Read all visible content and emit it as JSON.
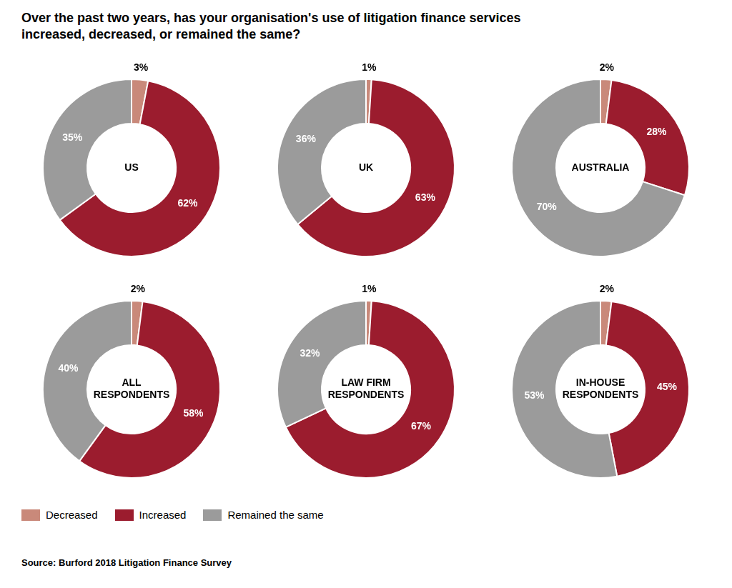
{
  "title": "Over the past two years, has your organisation's use of litigation finance services\nincreased, decreased, or remained the same?",
  "source": "Source: Burford 2018 Litigation Finance Survey",
  "legend": "lower left",
  "chart_data": [
    {
      "type": "doughnut",
      "title": "US",
      "categories": [
        "Decreased",
        "Increased",
        "Remained the same"
      ],
      "values": [
        3,
        62,
        35
      ],
      "value_labels": [
        "3%",
        "62%",
        "35%"
      ],
      "colors": [
        "#c9897a",
        "#9b1c2e",
        "#9b9b9b"
      ],
      "data_labels": true
    },
    {
      "type": "doughnut",
      "title": "UK",
      "categories": [
        "Decreased",
        "Increased",
        "Remained the same"
      ],
      "values": [
        1,
        63,
        36
      ],
      "value_labels": [
        "1%",
        "63%",
        "36%"
      ],
      "colors": [
        "#c9897a",
        "#9b1c2e",
        "#9b9b9b"
      ],
      "data_labels": true
    },
    {
      "type": "doughnut",
      "title": "AUSTRALIA",
      "categories": [
        "Decreased",
        "Increased",
        "Remained the same"
      ],
      "values": [
        2,
        28,
        70
      ],
      "value_labels": [
        "2%",
        "28%",
        "70%"
      ],
      "colors": [
        "#c9897a",
        "#9b1c2e",
        "#9b9b9b"
      ],
      "data_labels": true
    },
    {
      "type": "doughnut",
      "title": "ALL\nRESPONDENTS",
      "categories": [
        "Decreased",
        "Increased",
        "Remained the same"
      ],
      "values": [
        2,
        58,
        40
      ],
      "value_labels": [
        "2%",
        "58%",
        "40%"
      ],
      "colors": [
        "#c9897a",
        "#9b1c2e",
        "#9b9b9b"
      ],
      "data_labels": true
    },
    {
      "type": "doughnut",
      "title": "LAW FIRM\nRESPONDENTS",
      "categories": [
        "Decreased",
        "Increased",
        "Remained the same"
      ],
      "values": [
        1,
        67,
        32
      ],
      "value_labels": [
        "1%",
        "67%",
        "32%"
      ],
      "colors": [
        "#c9897a",
        "#9b1c2e",
        "#9b9b9b"
      ],
      "data_labels": true
    },
    {
      "type": "doughnut",
      "title": "IN-HOUSE\nRESPONDENTS",
      "categories": [
        "Decreased",
        "Increased",
        "Remained the same"
      ],
      "values": [
        2,
        45,
        53
      ],
      "value_labels": [
        "2%",
        "45%",
        "53%"
      ],
      "colors": [
        "#c9897a",
        "#9b1c2e",
        "#9b9b9b"
      ],
      "data_labels": true
    }
  ]
}
